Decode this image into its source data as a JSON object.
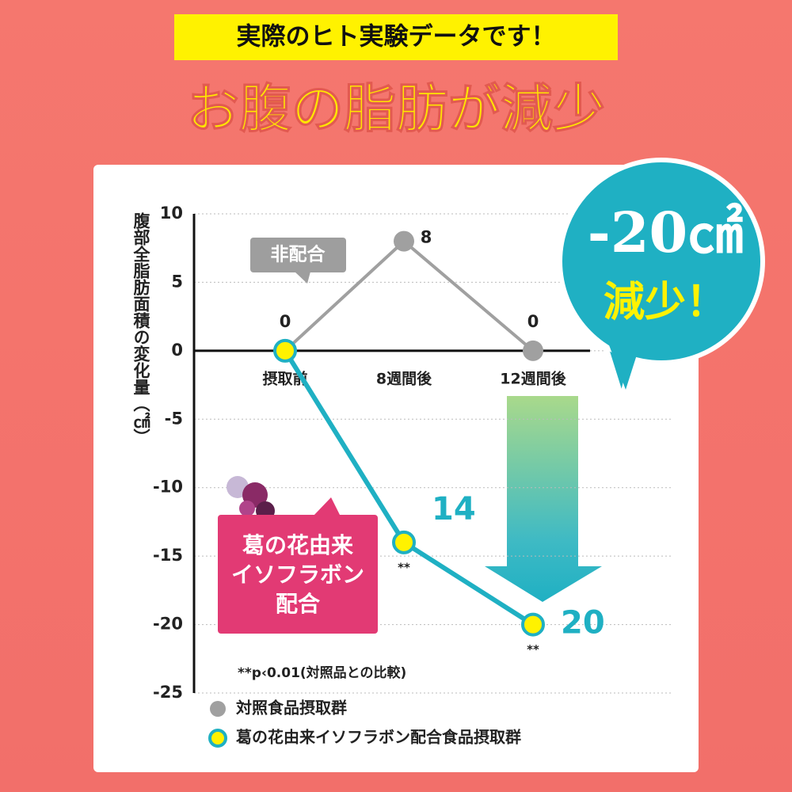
{
  "header": {
    "banner": "実際のヒト実験データです！",
    "title": "お腹の脂肪が減少"
  },
  "badge": {
    "amount": "-20㎠",
    "text": "減少！"
  },
  "chart_data": {
    "type": "line",
    "y_label": "腹部全脂肪面積の変化量（㎠）",
    "categories": [
      "摂取前",
      "8週間後",
      "12週間後"
    ],
    "series": [
      {
        "name": "対照食品摂取群",
        "color": "#a0a0a0",
        "values": [
          0,
          8,
          0
        ]
      },
      {
        "name": "葛の花由来イソフラボン配合食品摂取群",
        "color": "#1fb0c3",
        "values": [
          0,
          -14,
          -20
        ],
        "value_labels": [
          null,
          "14",
          "20"
        ],
        "significance": [
          null,
          "**",
          "**"
        ]
      }
    ],
    "ylim": [
      -25,
      10
    ],
    "yticks": [
      10,
      5,
      0,
      -5,
      -10,
      -15,
      -20,
      -25
    ],
    "grid": true,
    "callouts": {
      "control": "非配合",
      "test": [
        "葛の花由来",
        "イソフラボン",
        "配合"
      ]
    },
    "footnote": "**p‹0.01(対照品との比較)"
  }
}
